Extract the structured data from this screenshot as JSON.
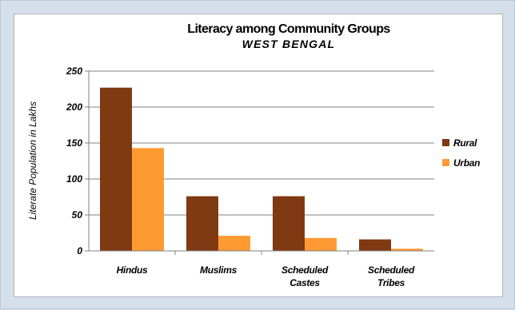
{
  "chart_data": {
    "type": "bar",
    "title": "Literacy among Community Groups",
    "subtitle": "WEST BENGAL",
    "ylabel": "Literate Population in Lakhs",
    "xlabel": "",
    "ylim": [
      0,
      250
    ],
    "yticks": [
      "0",
      "50",
      "100",
      "150",
      "200",
      "250"
    ],
    "categories": [
      [
        "Hindus"
      ],
      [
        "Muslims"
      ],
      [
        "Scheduled",
        "Castes"
      ],
      [
        "Scheduled",
        "Tribes"
      ]
    ],
    "series": [
      {
        "name": "Rural",
        "color": "#7f3a14",
        "values": [
          227,
          76,
          76,
          16
        ]
      },
      {
        "name": "Urban",
        "color": "#ff9a33",
        "values": [
          143,
          21,
          18,
          3
        ]
      }
    ],
    "grid": true,
    "legend_position": "right"
  }
}
